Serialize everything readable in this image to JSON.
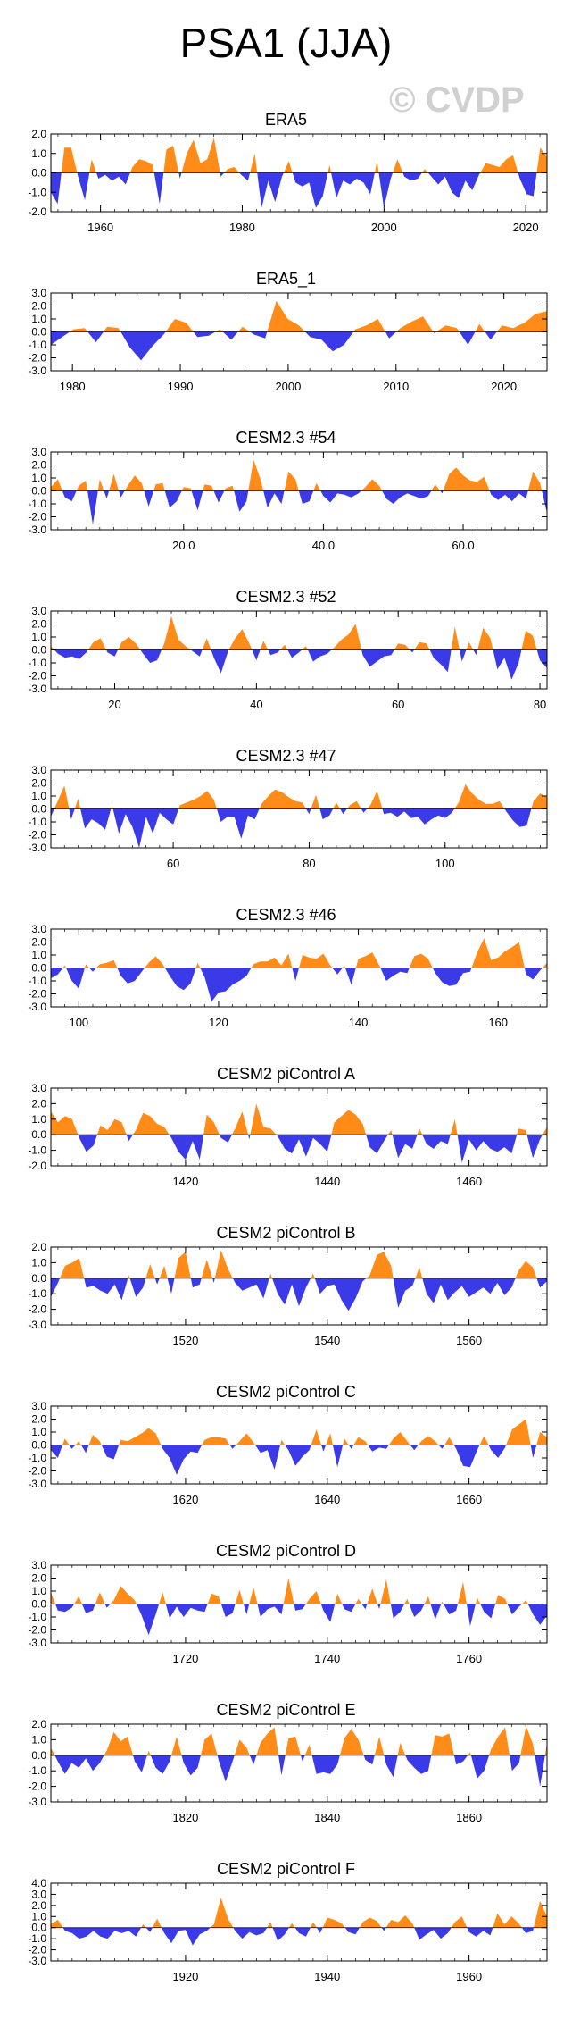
{
  "title": "PSA1 (JJA)",
  "watermark": "© CVDP",
  "colors": {
    "positive": "#ff8c19",
    "negative": "#3a3ae8",
    "axis": "#000000"
  },
  "chart_data": [
    {
      "type": "area",
      "title": "ERA5",
      "xlim": [
        1953,
        2023
      ],
      "ylim": [
        -2,
        2
      ],
      "yticks": [
        "2.0",
        "1.0",
        "0.0",
        "-1.0",
        "-2.0"
      ],
      "ytick_values": [
        2,
        1,
        0,
        -1,
        -2
      ],
      "xticks": [
        1960,
        1980,
        2000,
        2020
      ],
      "xtick_labels": [
        "1960",
        "1980",
        "2000",
        "2020"
      ],
      "values": [
        -1.0,
        -1.6,
        1.3,
        1.3,
        -0.2,
        -1.4,
        0.7,
        -0.3,
        -0.1,
        -0.4,
        -0.2,
        -0.6,
        0.3,
        0.7,
        0.6,
        0.4,
        -1.6,
        1.2,
        1.4,
        -0.3,
        1.0,
        1.7,
        0.5,
        0.7,
        1.8,
        -0.2,
        0.2,
        0.3,
        -0.1,
        -0.4,
        1.0,
        -1.8,
        -0.4,
        -1.5,
        -0.2,
        0.6,
        -0.5,
        -0.7,
        -0.5,
        -1.8,
        -1.2,
        0.4,
        -1.3,
        -0.4,
        -0.6,
        -0.3,
        -0.5,
        -1.1,
        0.6,
        -1.8,
        -0.3,
        0.7,
        -0.2,
        -0.4,
        -0.3,
        0.2,
        -0.2,
        -0.6,
        -0.2,
        -1.0,
        -1.3,
        -0.4,
        -0.9,
        -0.1,
        0.5,
        0.4,
        0.3,
        0.7,
        0.9,
        -0.3,
        -1.1,
        -1.2,
        1.3,
        0.8
      ]
    },
    {
      "type": "area",
      "title": "ERA5_1",
      "xlim": [
        1978,
        2024
      ],
      "ylim": [
        -3,
        3
      ],
      "yticks": [
        "3.0",
        "2.0",
        "1.0",
        "0.0",
        "-1.0",
        "-2.0",
        "-3.0"
      ],
      "ytick_values": [
        3,
        2,
        1,
        0,
        -1,
        -2,
        -3
      ],
      "xticks": [
        1980,
        1990,
        2000,
        2010,
        2020
      ],
      "xtick_labels": [
        "1980",
        "1990",
        "2000",
        "2010",
        "2020"
      ],
      "values": [
        -1.0,
        -0.4,
        0.2,
        0.3,
        -0.8,
        0.4,
        0.3,
        -1.2,
        -2.2,
        -1.1,
        -0.2,
        1.0,
        0.7,
        -0.4,
        -0.3,
        0.2,
        -0.6,
        0.4,
        -0.2,
        -0.5,
        2.4,
        1.0,
        0.5,
        -0.4,
        -0.6,
        -1.5,
        -1.0,
        0.2,
        0.5,
        1.0,
        -0.5,
        0.3,
        0.8,
        1.2,
        -0.1,
        0.5,
        0.3,
        -1.0,
        0.6,
        -0.6,
        0.5,
        0.3,
        0.7,
        1.4,
        1.6
      ]
    },
    {
      "type": "area",
      "title": "CESM2.3 #54",
      "xlim": [
        1,
        72
      ],
      "ylim": [
        -3,
        3
      ],
      "yticks": [
        "3.0",
        "2.0",
        "1.0",
        "0.0",
        "-1.0",
        "-2.0",
        "-3.0"
      ],
      "ytick_values": [
        3,
        2,
        1,
        0,
        -1,
        -2,
        -3
      ],
      "xticks": [
        20,
        40,
        60
      ],
      "xtick_labels": [
        "20.0",
        "40.0",
        "60.0"
      ],
      "values": [
        0.3,
        0.9,
        -0.5,
        -0.8,
        0.4,
        0.8,
        -2.6,
        0.9,
        -0.6,
        1.3,
        -0.5,
        0.4,
        1.2,
        0.6,
        -1.2,
        0.5,
        0.6,
        -1.3,
        -0.8,
        0.3,
        0.2,
        -1.5,
        0.5,
        0.4,
        -0.9,
        0.2,
        0.4,
        -1.6,
        -0.8,
        2.4,
        0.9,
        -1.3,
        -0.2,
        -1.0,
        1.5,
        0.9,
        -1.0,
        -0.8,
        0.6,
        -0.4,
        -0.9,
        -0.2,
        -0.3,
        -0.5,
        -0.2,
        0.3,
        0.9,
        0.4,
        -0.6,
        -1.0,
        -0.5,
        -0.2,
        -0.4,
        -0.6,
        -0.4,
        0.5,
        -0.2,
        1.3,
        1.8,
        1.2,
        0.8,
        0.7,
        1.1,
        -0.3,
        -0.7,
        -0.3,
        -0.8,
        -0.2,
        -0.6,
        1.5,
        0.6,
        -1.7
      ]
    },
    {
      "type": "area",
      "title": "CESM2.3 #52",
      "xlim": [
        11,
        81
      ],
      "ylim": [
        -3,
        3
      ],
      "yticks": [
        "3.0",
        "2.0",
        "1.0",
        "0.0",
        "-1.0",
        "-2.0",
        "-3.0"
      ],
      "ytick_values": [
        3,
        2,
        1,
        0,
        -1,
        -2,
        -3
      ],
      "xticks": [
        20,
        40,
        60,
        80
      ],
      "xtick_labels": [
        "20",
        "40",
        "60",
        "80"
      ],
      "values": [
        0.3,
        -0.3,
        -0.6,
        -0.5,
        -0.7,
        -0.2,
        0.6,
        0.9,
        -0.2,
        -0.5,
        0.6,
        1.0,
        0.5,
        -0.3,
        -1.0,
        -0.8,
        0.5,
        2.6,
        0.8,
        0.3,
        -0.1,
        -0.5,
        0.9,
        -0.6,
        -1.8,
        -0.1,
        0.9,
        1.6,
        0.5,
        -0.8,
        0.7,
        -0.4,
        -0.2,
        0.4,
        -0.6,
        -0.2,
        0.3,
        -0.9,
        -0.5,
        -0.3,
        0.2,
        0.8,
        1.2,
        2.0,
        -0.4,
        -1.3,
        -0.9,
        -0.5,
        -0.4,
        0.5,
        0.4,
        -0.2,
        0.6,
        0.5,
        -0.6,
        -1.1,
        -1.7,
        1.8,
        -0.9,
        0.6,
        -0.4,
        1.7,
        0.9,
        -1.5,
        -0.6,
        -2.3,
        -1.0,
        1.5,
        1.1,
        -0.8,
        -1.4
      ]
    },
    {
      "type": "area",
      "title": "CESM2.3 #47",
      "xlim": [
        42,
        115
      ],
      "ylim": [
        -3,
        3
      ],
      "yticks": [
        "3.0",
        "2.0",
        "1.0",
        "0.0",
        "-1.0",
        "-2.0",
        "-3.0"
      ],
      "ytick_values": [
        3,
        2,
        1,
        0,
        -1,
        -2,
        -3
      ],
      "xticks": [
        60,
        80,
        100
      ],
      "xtick_labels": [
        "60",
        "80",
        "100"
      ],
      "values": [
        -0.6,
        0.6,
        1.8,
        -0.8,
        0.8,
        -1.5,
        -0.8,
        -1.1,
        -1.6,
        0.3,
        -1.9,
        -0.4,
        -1.4,
        -3.0,
        -0.6,
        -1.9,
        -0.3,
        -0.8,
        -1.2,
        0.3,
        0.5,
        0.7,
        1.0,
        1.4,
        0.7,
        -1.0,
        -0.6,
        -0.6,
        -2.3,
        -0.5,
        -0.8,
        0.4,
        1.0,
        1.5,
        1.3,
        0.9,
        0.6,
        0.5,
        -0.4,
        1.1,
        -0.8,
        -0.5,
        0.5,
        -0.4,
        0.3,
        0.6,
        -0.3,
        0.3,
        1.4,
        -0.4,
        -0.3,
        -0.6,
        -0.2,
        -0.7,
        -0.6,
        -1.2,
        -0.8,
        -0.5,
        -0.7,
        -0.3,
        0.5,
        1.9,
        1.2,
        0.7,
        0.4,
        0.4,
        0.6,
        -0.2,
        -0.9,
        -1.4,
        -1.3,
        0.6,
        1.2,
        0.9
      ]
    },
    {
      "type": "area",
      "title": "CESM2.3 #46",
      "xlim": [
        96,
        167
      ],
      "ylim": [
        -3,
        3
      ],
      "yticks": [
        "3.0",
        "2.0",
        "1.0",
        "0.0",
        "-1.0",
        "-2.0",
        "-3.0"
      ],
      "ytick_values": [
        3,
        2,
        1,
        0,
        -1,
        -2,
        -3
      ],
      "xticks": [
        100,
        120,
        140,
        160
      ],
      "xtick_labels": [
        "100",
        "120",
        "140",
        "160"
      ],
      "values": [
        -0.8,
        -0.5,
        0.2,
        -1.0,
        -1.6,
        0.3,
        -0.3,
        0.3,
        0.4,
        0.6,
        -0.6,
        -1.2,
        -1.0,
        -0.3,
        0.4,
        0.9,
        0.3,
        -0.6,
        -1.4,
        -1.7,
        -1.2,
        0.4,
        -0.7,
        -2.6,
        -1.9,
        -1.8,
        -1.3,
        -1.0,
        -0.6,
        0.3,
        0.5,
        0.5,
        0.8,
        0.2,
        1.1,
        -1.0,
        1.0,
        0.8,
        0.7,
        1.1,
        0.2,
        -0.5,
        0.2,
        -1.3,
        0.7,
        0.9,
        1.2,
        0.2,
        -1.0,
        -0.6,
        -0.3,
        -0.4,
        0.9,
        1.1,
        0.7,
        -0.4,
        -1.1,
        -1.4,
        -1.3,
        -0.4,
        -0.3,
        1.2,
        2.3,
        0.6,
        0.8,
        1.3,
        1.6,
        2.0,
        -0.5,
        -0.9,
        -0.2,
        0.4
      ]
    },
    {
      "type": "area",
      "title": "CESM2 piControl A",
      "xlim": [
        1401,
        1471
      ],
      "ylim": [
        -2,
        3
      ],
      "yticks": [
        "3.0",
        "2.0",
        "1.0",
        "0.0",
        "-1.0",
        "-2.0"
      ],
      "ytick_values": [
        3,
        2,
        1,
        0,
        -1,
        -2
      ],
      "xticks": [
        1420,
        1440,
        1460
      ],
      "xtick_labels": [
        "1420",
        "1440",
        "1460"
      ],
      "values": [
        1.5,
        0.8,
        1.2,
        1.0,
        -0.2,
        -1.1,
        -0.7,
        0.6,
        0.3,
        1.0,
        0.8,
        -0.4,
        0.3,
        1.4,
        1.2,
        0.7,
        0.5,
        -0.2,
        -1.1,
        -1.6,
        -0.4,
        -1.6,
        1.3,
        0.8,
        -0.2,
        -0.5,
        0.4,
        1.5,
        -0.3,
        2.0,
        0.5,
        0.4,
        -0.1,
        -0.9,
        -1.2,
        -0.3,
        -1.4,
        -0.2,
        -0.6,
        -1.1,
        0.8,
        1.2,
        1.6,
        1.3,
        0.7,
        -0.8,
        -1.2,
        -0.4,
        0.3,
        -1.5,
        -0.6,
        -0.9,
        0.4,
        -0.6,
        -0.9,
        -0.4,
        -0.6,
        1.0,
        -1.8,
        -0.3,
        -1.0,
        -0.4,
        -0.9,
        -1.1,
        -0.8,
        -1.2,
        0.4,
        0.3,
        -1.5,
        -0.3,
        0.5
      ]
    },
    {
      "type": "area",
      "title": "CESM2 piControl B",
      "xlim": [
        1501,
        1571
      ],
      "ylim": [
        -3,
        2
      ],
      "yticks": [
        "2.0",
        "1.0",
        "0.0",
        "-1.0",
        "-2.0",
        "-3.0"
      ],
      "ytick_values": [
        2,
        1,
        0,
        -1,
        -2,
        -3
      ],
      "xticks": [
        1520,
        1540,
        1560
      ],
      "xtick_labels": [
        "1520",
        "1540",
        "1560"
      ],
      "values": [
        -1.2,
        -0.3,
        0.8,
        1.0,
        1.3,
        -0.6,
        -0.5,
        -0.8,
        -1.0,
        -0.4,
        -1.4,
        0.2,
        -1.2,
        -0.6,
        0.9,
        -0.4,
        0.8,
        -1.0,
        1.3,
        1.7,
        -0.6,
        -0.4,
        1.2,
        -0.3,
        1.8,
        0.6,
        -0.3,
        -0.8,
        -0.6,
        -0.4,
        -1.3,
        0.3,
        -1.0,
        -1.7,
        -0.4,
        -1.8,
        -0.6,
        0.3,
        -1.0,
        -0.5,
        -0.4,
        -1.4,
        -2.1,
        -1.3,
        -0.2,
        0.2,
        1.5,
        1.7,
        0.8,
        -1.9,
        -0.8,
        -0.5,
        0.7,
        -1.0,
        -1.6,
        -0.4,
        -1.4,
        -0.9,
        -0.5,
        -1.2,
        -0.9,
        -0.6,
        -1.0,
        -0.3,
        -1.1,
        -0.6,
        0.5,
        1.1,
        0.7,
        -0.6,
        -0.2
      ]
    },
    {
      "type": "area",
      "title": "CESM2 piControl C",
      "xlim": [
        1601,
        1671
      ],
      "ylim": [
        -3,
        3
      ],
      "yticks": [
        "3.0",
        "2.0",
        "1.0",
        "0.0",
        "-1.0",
        "-2.0",
        "-3.0"
      ],
      "ytick_values": [
        3,
        2,
        1,
        0,
        -1,
        -2,
        -3
      ],
      "xticks": [
        1620,
        1640,
        1660
      ],
      "xtick_labels": [
        "1620",
        "1640",
        "1660"
      ],
      "values": [
        -0.4,
        -1.0,
        0.5,
        -0.3,
        0.3,
        -0.6,
        0.8,
        0.3,
        -0.9,
        -1.1,
        0.4,
        0.3,
        0.6,
        0.9,
        1.3,
        0.9,
        -0.3,
        -1.0,
        -2.3,
        -1.1,
        -0.5,
        -0.6,
        0.4,
        0.6,
        0.6,
        0.5,
        -0.3,
        0.3,
        0.9,
        0.2,
        -0.6,
        -0.4,
        -1.9,
        0.4,
        -0.4,
        -1.6,
        -0.9,
        -0.4,
        1.2,
        -0.5,
        0.9,
        -1.7,
        0.5,
        -0.3,
        0.6,
        0.3,
        -0.5,
        -0.2,
        -0.3,
        0.5,
        1.0,
        0.3,
        -0.4,
        0.3,
        0.7,
        0.3,
        -0.3,
        0.6,
        -0.3,
        -1.6,
        -1.7,
        -0.4,
        0.7,
        -0.4,
        -1.0,
        -0.2,
        1.2,
        1.6,
        2.0,
        -1.0,
        1.0,
        0.6
      ]
    },
    {
      "type": "area",
      "title": "CESM2 piControl D",
      "xlim": [
        1701,
        1771
      ],
      "ylim": [
        -3,
        3
      ],
      "yticks": [
        "3.0",
        "2.0",
        "1.0",
        "0.0",
        "-1.0",
        "-2.0",
        "-3.0"
      ],
      "ytick_values": [
        3,
        2,
        1,
        0,
        -1,
        -2,
        -3
      ],
      "xticks": [
        1720,
        1740,
        1760
      ],
      "xtick_labels": [
        "1720",
        "1740",
        "1760"
      ],
      "values": [
        0.9,
        -0.5,
        -0.6,
        -0.3,
        0.6,
        -0.7,
        -0.5,
        0.9,
        -0.3,
        0.3,
        1.4,
        0.8,
        0.3,
        -0.9,
        -2.4,
        -0.8,
        0.9,
        -1.1,
        -0.2,
        -1.0,
        -0.3,
        -0.5,
        -0.6,
        0.8,
        0.6,
        -1.0,
        -0.7,
        1.1,
        -0.8,
        1.3,
        -1.0,
        -0.4,
        -0.2,
        -0.8,
        2.0,
        -0.5,
        -0.4,
        0.4,
        1.0,
        -0.5,
        -1.4,
        0.8,
        -0.4,
        -0.6,
        0.4,
        -0.4,
        1.2,
        -0.4,
        1.9,
        -1.1,
        -0.6,
        0.4,
        -1.0,
        -0.5,
        0.6,
        -1.2,
        0.2,
        -0.8,
        -0.5,
        1.7,
        -1.7,
        0.5,
        -0.6,
        -1.1,
        0.7,
        0.4,
        -0.8,
        -0.2,
        0.3,
        -0.8,
        -1.6,
        -0.9
      ]
    },
    {
      "type": "area",
      "title": "CESM2 piControl E",
      "xlim": [
        1801,
        1871
      ],
      "ylim": [
        -3,
        2
      ],
      "yticks": [
        "2.0",
        "1.0",
        "0.0",
        "-1.0",
        "-2.0",
        "-3.0"
      ],
      "ytick_values": [
        2,
        1,
        0,
        -1,
        -2,
        -3
      ],
      "xticks": [
        1820,
        1840,
        1860
      ],
      "xtick_labels": [
        "1820",
        "1840",
        "1860"
      ],
      "values": [
        0.5,
        -0.4,
        -1.2,
        -0.5,
        -0.8,
        -0.2,
        -1.0,
        -0.5,
        0.3,
        1.5,
        0.9,
        1.2,
        -0.4,
        -1.1,
        0.3,
        -0.8,
        -1.2,
        -0.4,
        1.2,
        -0.5,
        -1.3,
        -0.8,
        1.0,
        1.4,
        -0.3,
        -1.7,
        -0.4,
        1.0,
        0.5,
        -0.6,
        0.8,
        1.4,
        1.8,
        -1.3,
        1.1,
        1.2,
        -0.4,
        0.7,
        -1.2,
        -1.1,
        -1.2,
        -0.6,
        1.1,
        1.7,
        1.0,
        -0.3,
        -0.6,
        1.2,
        -0.6,
        -1.4,
        0.8,
        -0.3,
        -0.8,
        -1.2,
        -1.0,
        1.3,
        1.2,
        1.4,
        -0.6,
        -0.4,
        0.2,
        -1.5,
        -1.0,
        0.4,
        1.2,
        1.8,
        -1.0,
        -0.5,
        1.9,
        0.7,
        -2.0,
        0.8
      ]
    },
    {
      "type": "area",
      "title": "CESM2 piControl F",
      "xlim": [
        1901,
        1971
      ],
      "ylim": [
        -3,
        4
      ],
      "yticks": [
        "4.0",
        "3.0",
        "2.0",
        "1.0",
        "0.0",
        "-1.0",
        "-2.0",
        "-3.0"
      ],
      "ytick_values": [
        4,
        3,
        2,
        1,
        0,
        -1,
        -2,
        -3
      ],
      "xticks": [
        1920,
        1940,
        1960
      ],
      "xtick_labels": [
        "1920",
        "1940",
        "1960"
      ],
      "values": [
        0.3,
        0.7,
        -0.3,
        -0.5,
        -1.0,
        -0.8,
        -0.3,
        -0.8,
        -1.0,
        -0.3,
        -0.5,
        -0.3,
        -0.8,
        0.3,
        -0.4,
        0.8,
        -0.5,
        -1.4,
        -0.3,
        -0.2,
        -1.6,
        -0.6,
        -0.3,
        0.3,
        2.7,
        0.8,
        -0.3,
        -1.0,
        -0.4,
        -0.7,
        -0.5,
        0.5,
        -1.2,
        -0.6,
        0.4,
        -0.5,
        -0.8,
        0.5,
        -0.5,
        0.9,
        0.7,
        0.4,
        -0.4,
        -0.6,
        0.5,
        0.9,
        0.6,
        -0.3,
        0.7,
        0.5,
        1.1,
        0.4,
        -1.1,
        -0.6,
        -0.2,
        -1.0,
        -0.5,
        0.5,
        1.0,
        -0.4,
        -0.8,
        -0.3,
        -0.7,
        1.3,
        0.3,
        1.0,
        0.4,
        -0.5,
        -0.3,
        2.4,
        1.0
      ]
    }
  ]
}
